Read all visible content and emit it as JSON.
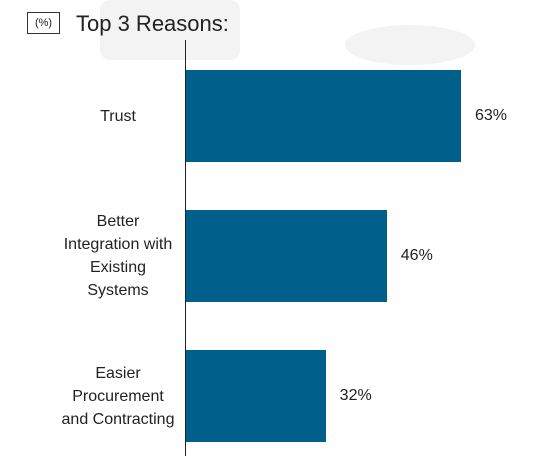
{
  "chart_data": {
    "type": "bar",
    "orientation": "horizontal",
    "title": "Top 3 Reasons:",
    "unit_label": "(%)",
    "categories": [
      "Trust",
      "Better Integration with Existing Systems",
      "Easier Procurement and Contracting"
    ],
    "values": [
      63,
      46,
      32
    ],
    "value_labels": [
      "63%",
      "46%",
      "32%"
    ],
    "color": "#00608b"
  }
}
